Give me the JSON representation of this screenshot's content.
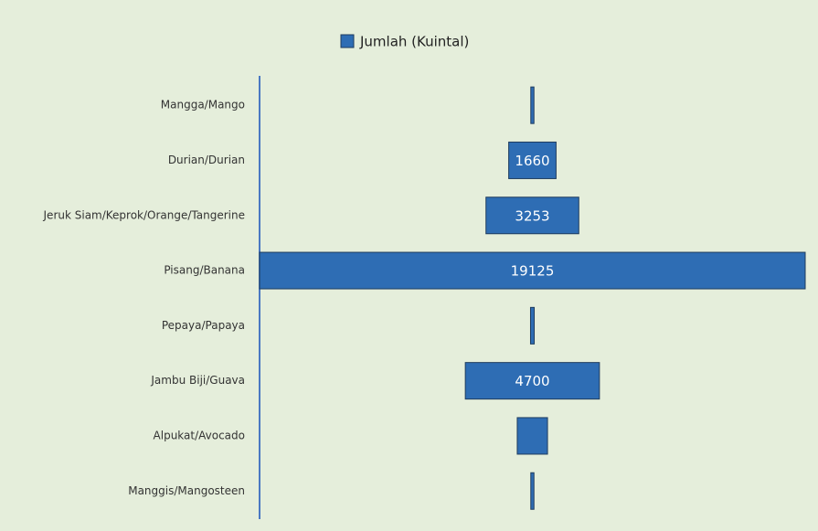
{
  "chart_data": {
    "type": "funnel",
    "legend": "Jumlah (Kuintal)",
    "color": "#2e6db4",
    "categories": [
      "Mangga/Mango",
      "Durian/Durian",
      "Jeruk Siam/Keprok/Orange/Tangerine",
      "Pisang/Banana",
      "Pepaya/Papaya",
      "Jambu Biji/Guava",
      "Alpukat/Avocado",
      "Manggis/Mangosteen"
    ],
    "values": [
      110,
      1660,
      3253,
      19125,
      130,
      4700,
      1060,
      110
    ]
  }
}
